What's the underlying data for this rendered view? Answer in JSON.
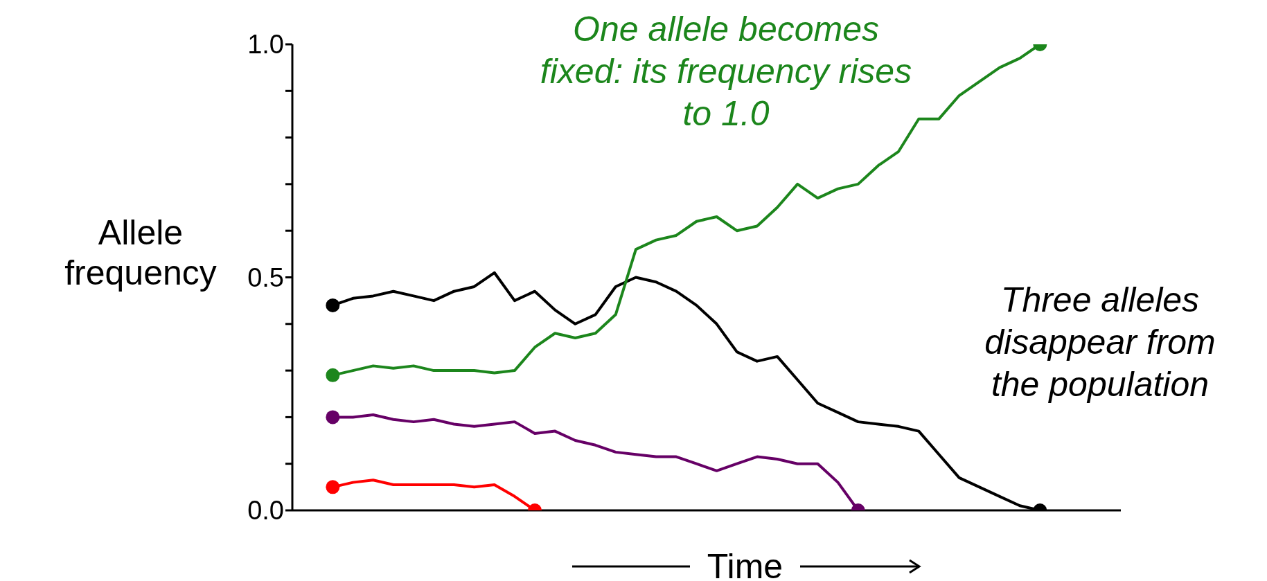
{
  "chart_data": {
    "type": "line",
    "xlabel": "Time",
    "ylabel": "Allele frequency",
    "categories": [
      null,
      null,
      null,
      null,
      null,
      null,
      null,
      null,
      null,
      null,
      null,
      null,
      null,
      null,
      null,
      null,
      null,
      null,
      null,
      null,
      null,
      null,
      null,
      null,
      null,
      null,
      null,
      null,
      null,
      null,
      null,
      null,
      null,
      null,
      null,
      null,
      null,
      null,
      null,
      null,
      null,
      null
    ],
    "series": [
      {
        "color": "#000000",
        "values": [
          null,
          null,
          0.44,
          0.455,
          0.46,
          0.47,
          0.46,
          0.45,
          0.47,
          0.48,
          0.51,
          0.45,
          0.47,
          0.43,
          0.4,
          0.42,
          0.48,
          0.5,
          0.49,
          0.47,
          0.44,
          0.4,
          0.34,
          0.32,
          0.33,
          0.28,
          0.23,
          0.21,
          0.19,
          0.185,
          0.18,
          0.17,
          0.12,
          0.07,
          0.05,
          0.03,
          0.01,
          0,
          null,
          null,
          null,
          null
        ]
      },
      {
        "color": "#1c861c",
        "values": [
          null,
          null,
          0.29,
          0.3,
          0.31,
          0.305,
          0.31,
          0.3,
          0.3,
          0.3,
          0.295,
          0.3,
          0.35,
          0.38,
          0.37,
          0.38,
          0.42,
          0.56,
          0.58,
          0.59,
          0.62,
          0.63,
          0.6,
          0.61,
          0.65,
          0.7,
          0.67,
          0.69,
          0.7,
          0.74,
          0.77,
          0.84,
          0.84,
          0.89,
          0.92,
          0.95,
          0.97,
          1.0,
          null,
          null,
          null,
          null
        ]
      },
      {
        "color": "#660066",
        "values": [
          null,
          null,
          0.2,
          0.2,
          0.205,
          0.195,
          0.19,
          0.195,
          0.185,
          0.18,
          0.185,
          0.19,
          0.165,
          0.17,
          0.15,
          0.14,
          0.125,
          0.12,
          0.115,
          0.115,
          0.1,
          0.085,
          0.1,
          0.115,
          0.11,
          0.1,
          0.1,
          0.06,
          0,
          null,
          null,
          null,
          null,
          null,
          null,
          null,
          null,
          null,
          null,
          null,
          null,
          null
        ]
      },
      {
        "color": "#ff0000",
        "values": [
          null,
          null,
          0.05,
          0.06,
          0.065,
          0.055,
          0.055,
          0.055,
          0.055,
          0.05,
          0.055,
          0.03,
          0,
          null,
          null,
          null,
          null,
          null,
          null,
          null,
          null,
          null,
          null,
          null,
          null,
          null,
          null,
          null,
          null,
          null,
          null,
          null,
          null,
          null,
          null,
          null,
          null,
          null,
          null,
          null,
          null,
          null
        ]
      }
    ],
    "ylim": [
      0,
      1.0
    ],
    "yticks": [
      {
        "value": 0,
        "label": "0.0"
      },
      {
        "value": 0.1,
        "label": null
      },
      {
        "value": 0.2,
        "label": null
      },
      {
        "value": 0.3,
        "label": null
      },
      {
        "value": 0.4,
        "label": null
      },
      {
        "value": 0.5,
        "label": "0.5"
      },
      {
        "value": 0.6,
        "label": null
      },
      {
        "value": 0.7,
        "label": null
      },
      {
        "value": 0.8,
        "label": null
      },
      {
        "value": 0.9,
        "label": null
      },
      {
        "value": 1.0,
        "label": "1.0"
      }
    ],
    "tick_labels": "y",
    "line_style": "solid",
    "grid": false,
    "legend": false,
    "annotations": [
      "One allele becomes fixed: its frequency rises to 1.0",
      "Three alleles disappear from the population"
    ]
  }
}
